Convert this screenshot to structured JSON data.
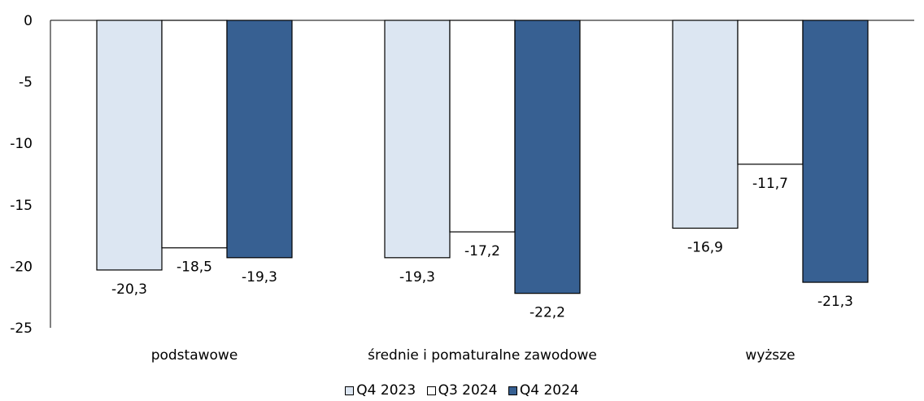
{
  "chart_data": {
    "type": "bar",
    "categories": [
      "podstawowe",
      "średnie i pomaturalne zawodowe",
      "wyższe"
    ],
    "series": [
      {
        "name": "Q4 2023",
        "values": [
          -20.3,
          -19.3,
          -16.9
        ],
        "labels": [
          "-20,3",
          "-19,3",
          "-16,9"
        ],
        "color": "#dce6f2"
      },
      {
        "name": "Q3 2024",
        "values": [
          -18.5,
          -17.2,
          -11.7
        ],
        "labels": [
          "-18,5",
          "-17,2",
          "-11,7"
        ],
        "color": "#ffffff"
      },
      {
        "name": "Q4 2024",
        "values": [
          -19.3,
          -22.2,
          -21.3
        ],
        "labels": [
          "-19,3",
          "-22,2",
          "-21,3"
        ],
        "color": "#376092"
      }
    ],
    "ylim": [
      -25,
      0
    ],
    "yticks": [
      "0",
      "-5",
      "-10",
      "-15",
      "-20",
      "-25"
    ],
    "ytick_values": [
      0,
      -5,
      -10,
      -15,
      -20,
      -25
    ],
    "grid": false,
    "legend_position": "bottom"
  }
}
